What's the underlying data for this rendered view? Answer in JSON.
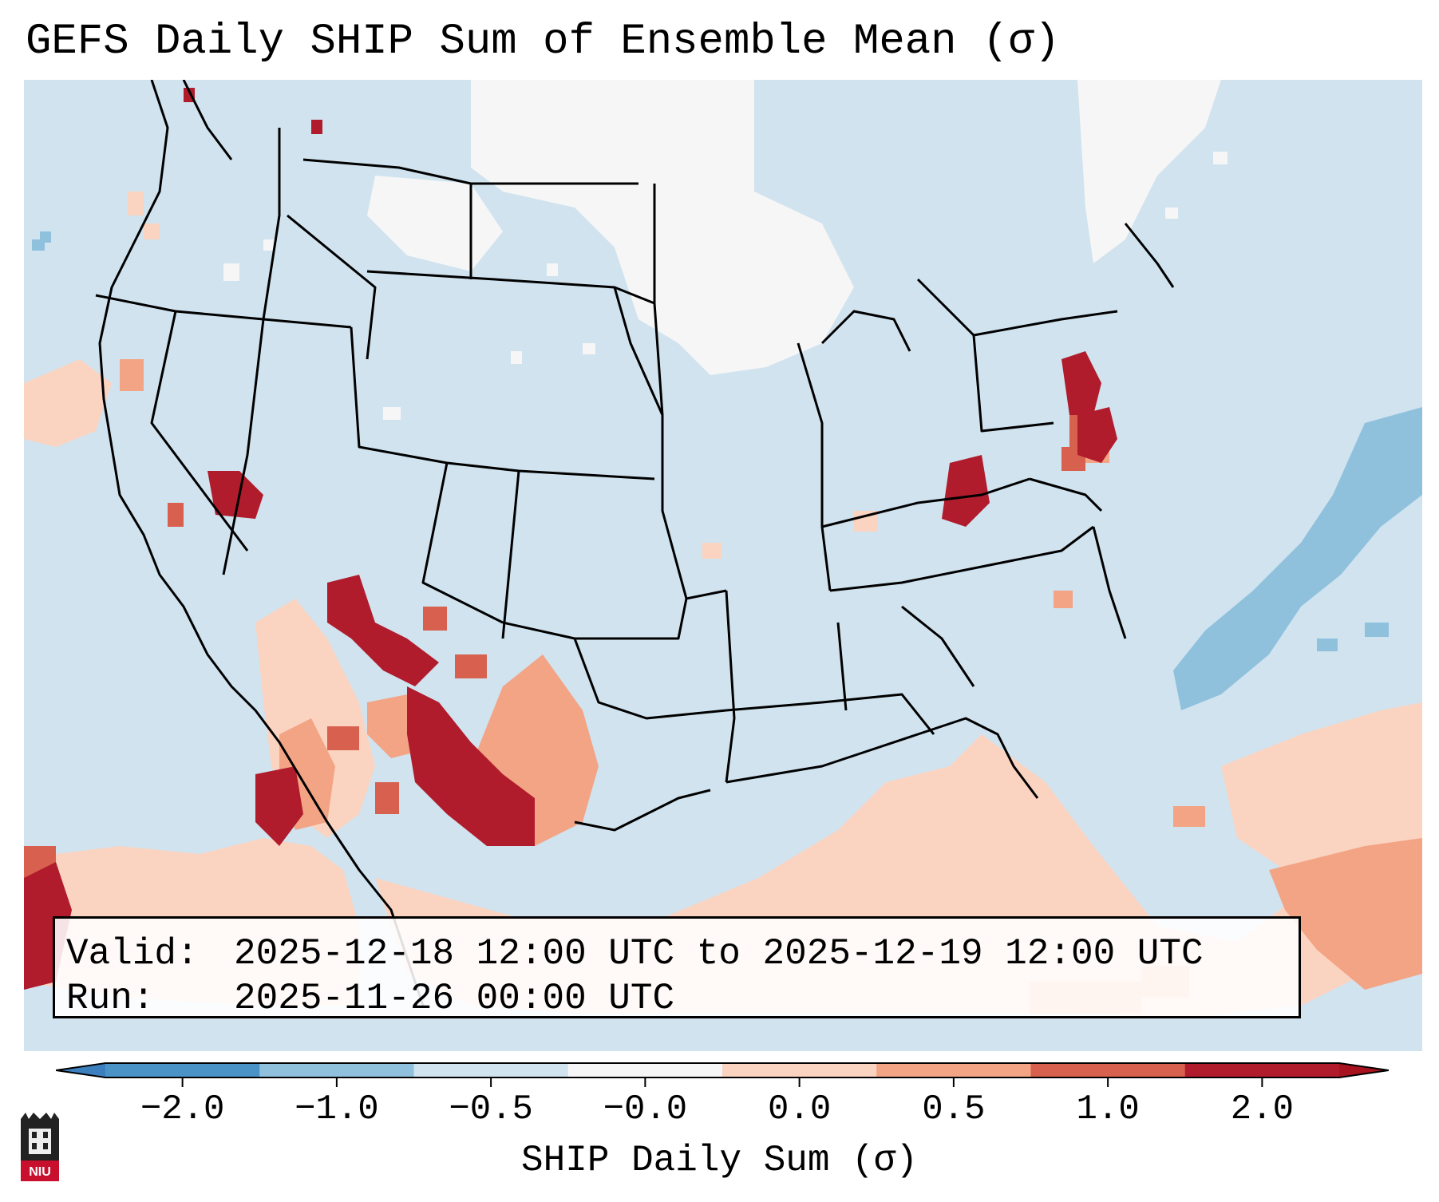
{
  "title": "GEFS Daily SHIP Sum of Ensemble Mean (σ)",
  "info": {
    "valid_label": "Valid:",
    "valid_value": "2025-12-18 12:00 UTC to 2025-12-19 12:00 UTC",
    "run_label": "Run:",
    "run_value": "2025-11-26 00:00 UTC"
  },
  "colorbar": {
    "label": "SHIP Daily Sum (σ)",
    "ticks": [
      "−2.0",
      "−1.0",
      "−0.5",
      "−0.0",
      "0.0",
      "0.5",
      "1.0",
      "2.0"
    ],
    "colors": [
      "#4a93c6",
      "#8fc1dd",
      "#d0e3ef",
      "#f6f6f6",
      "#fbd4c1",
      "#f2a485",
      "#d8604f",
      "#b01c2c"
    ],
    "extend_low_color": "#3b7fbf",
    "extend_high_color": "#a8121f"
  },
  "logo": {
    "text": "NIU"
  },
  "map": {
    "background_color": "#d0e3ef",
    "region": "Continental United States, southern Canada, northern Mexico, Gulf of Mexico and Caribbean"
  }
}
